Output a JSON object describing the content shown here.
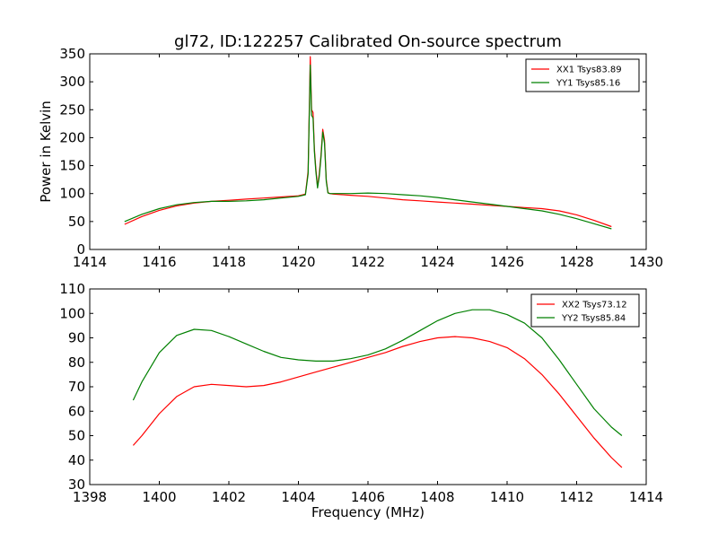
{
  "figure": {
    "title": "gl72, ID:122257 Calibrated On-source spectrum"
  },
  "chart_data": [
    {
      "type": "line",
      "title": "gl72, ID:122257 Calibrated On-source spectrum",
      "xlabel": "",
      "ylabel": "Power in Kelvin",
      "xlim": [
        1414,
        1430
      ],
      "ylim": [
        0,
        350
      ],
      "xticks": [
        1414,
        1416,
        1418,
        1420,
        1422,
        1424,
        1426,
        1428,
        1430
      ],
      "yticks": [
        0,
        50,
        100,
        150,
        200,
        250,
        300,
        350
      ],
      "grid": false,
      "legend": "top-right",
      "series": [
        {
          "name": "XX1 Tsys83.89",
          "color": "#ff0000",
          "x": [
            1415.0,
            1415.5,
            1416.0,
            1416.5,
            1417.0,
            1417.5,
            1418.0,
            1418.5,
            1419.0,
            1419.5,
            1420.0,
            1420.2,
            1420.28,
            1420.34,
            1420.38,
            1420.42,
            1420.46,
            1420.5,
            1420.55,
            1420.6,
            1420.65,
            1420.7,
            1420.75,
            1420.8,
            1420.85,
            1420.9,
            1421.0,
            1421.5,
            1422.0,
            1422.5,
            1423.0,
            1423.5,
            1424.0,
            1424.5,
            1425.0,
            1425.5,
            1426.0,
            1426.5,
            1427.0,
            1427.5,
            1428.0,
            1428.5,
            1429.0
          ],
          "y": [
            45,
            59,
            70,
            78,
            83,
            86,
            88,
            90,
            92,
            94,
            96,
            99,
            140,
            345,
            250,
            245,
            180,
            145,
            112,
            135,
            170,
            215,
            195,
            125,
            102,
            100,
            99,
            97,
            95,
            92,
            89,
            87,
            85,
            83,
            81,
            79,
            77,
            75,
            73,
            69,
            62,
            52,
            41
          ]
        },
        {
          "name": "YY1 Tsys85.16",
          "color": "#008000",
          "x": [
            1415.0,
            1415.5,
            1416.0,
            1416.5,
            1417.0,
            1417.5,
            1418.0,
            1418.5,
            1419.0,
            1419.5,
            1420.0,
            1420.2,
            1420.28,
            1420.34,
            1420.38,
            1420.42,
            1420.46,
            1420.5,
            1420.55,
            1420.6,
            1420.65,
            1420.7,
            1420.75,
            1420.8,
            1420.85,
            1420.9,
            1421.0,
            1421.5,
            1422.0,
            1422.5,
            1423.0,
            1423.5,
            1424.0,
            1424.5,
            1425.0,
            1425.5,
            1426.0,
            1426.5,
            1427.0,
            1427.5,
            1428.0,
            1428.5,
            1429.0
          ],
          "y": [
            50,
            63,
            73,
            80,
            84,
            86,
            86,
            87,
            89,
            92,
            95,
            98,
            135,
            330,
            240,
            235,
            175,
            140,
            110,
            130,
            165,
            210,
            190,
            122,
            101,
            100,
            100,
            100,
            101,
            100,
            98,
            96,
            93,
            89,
            85,
            81,
            77,
            73,
            69,
            63,
            55,
            46,
            37
          ]
        }
      ]
    },
    {
      "type": "line",
      "title": "",
      "xlabel": "Frequency (MHz)",
      "ylabel": "",
      "xlim": [
        1398,
        1414
      ],
      "ylim": [
        30,
        110
      ],
      "xticks": [
        1398,
        1400,
        1402,
        1404,
        1406,
        1408,
        1410,
        1412,
        1414
      ],
      "yticks": [
        30,
        40,
        50,
        60,
        70,
        80,
        90,
        100,
        110
      ],
      "grid": false,
      "legend": "top-right",
      "series": [
        {
          "name": "XX2 Tsys73.12",
          "color": "#ff0000",
          "x": [
            1399.25,
            1399.5,
            1400.0,
            1400.5,
            1401.0,
            1401.5,
            1402.0,
            1402.5,
            1403.0,
            1403.5,
            1404.0,
            1404.5,
            1405.0,
            1405.5,
            1406.0,
            1406.5,
            1407.0,
            1407.5,
            1408.0,
            1408.5,
            1409.0,
            1409.5,
            1410.0,
            1410.5,
            1411.0,
            1411.5,
            1412.0,
            1412.5,
            1413.0,
            1413.3
          ],
          "y": [
            46,
            50,
            59,
            66,
            70,
            71,
            70.5,
            70,
            70.5,
            72,
            74,
            76,
            78,
            80,
            82,
            84,
            86.5,
            88.5,
            90,
            90.5,
            90,
            88.5,
            86,
            81.5,
            75,
            67,
            58,
            49,
            41,
            37
          ]
        },
        {
          "name": "YY2 Tsys85.84",
          "color": "#008000",
          "x": [
            1399.25,
            1399.5,
            1400.0,
            1400.5,
            1401.0,
            1401.5,
            1402.0,
            1402.5,
            1403.0,
            1403.5,
            1404.0,
            1404.5,
            1405.0,
            1405.5,
            1406.0,
            1406.5,
            1407.0,
            1407.5,
            1408.0,
            1408.5,
            1409.0,
            1409.5,
            1410.0,
            1410.5,
            1411.0,
            1411.5,
            1412.0,
            1412.5,
            1413.0,
            1413.3
          ],
          "y": [
            64.5,
            72,
            84,
            91,
            93.5,
            93,
            90.5,
            87.5,
            84.5,
            82,
            81,
            80.5,
            80.5,
            81.5,
            83,
            85.5,
            89,
            93,
            97,
            100,
            101.5,
            101.5,
            99.5,
            96,
            90,
            81,
            71,
            61,
            53.5,
            50
          ]
        }
      ]
    }
  ]
}
